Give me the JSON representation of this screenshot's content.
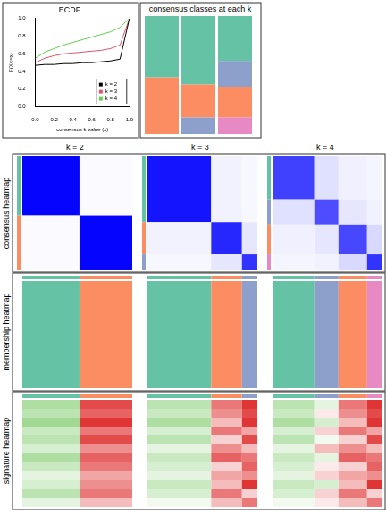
{
  "chart_data": {
    "type": "line",
    "title": "ECDF",
    "x_label": "consensus k value (x)",
    "y_label": "F(X<=x)",
    "x": [
      0,
      0.1,
      0.2,
      0.3,
      0.4,
      0.5,
      0.6,
      0.7,
      0.8,
      0.9,
      1.0
    ],
    "series": [
      {
        "name": "k = 2",
        "color": "#000000",
        "values": [
          0.47,
          0.48,
          0.48,
          0.49,
          0.49,
          0.5,
          0.5,
          0.51,
          0.52,
          0.54,
          1.0
        ]
      },
      {
        "name": "k = 3",
        "color": "#DF536B",
        "values": [
          0.5,
          0.55,
          0.58,
          0.6,
          0.61,
          0.62,
          0.63,
          0.64,
          0.66,
          0.7,
          1.0
        ]
      },
      {
        "name": "k = 4",
        "color": "#61D04F",
        "values": [
          0.55,
          0.62,
          0.66,
          0.7,
          0.73,
          0.76,
          0.79,
          0.82,
          0.85,
          0.9,
          1.0
        ]
      }
    ],
    "xlim": [
      0,
      1
    ],
    "xticks": [
      {
        "value": 0,
        "label": "0.0"
      },
      {
        "value": 0.2,
        "label": "0.2"
      },
      {
        "value": 0.4,
        "label": "0.4"
      },
      {
        "value": 0.6,
        "label": "0.6"
      },
      {
        "value": 0.8,
        "label": "0.8"
      },
      {
        "value": 1,
        "label": "1.0"
      }
    ],
    "ylim": [
      0,
      1
    ],
    "yticks": [
      {
        "value": 0,
        "label": "0.0"
      },
      {
        "value": 0.2,
        "label": "0.2"
      },
      {
        "value": 0.4,
        "label": "0.4"
      },
      {
        "value": 0.6,
        "label": "0.6"
      },
      {
        "value": 0.8,
        "label": "0.8"
      },
      {
        "value": 1,
        "label": "1.0"
      }
    ],
    "legend": "bottom-right",
    "grid": false
  },
  "consensus_classes": {
    "title": "consensus classes at each k"
  },
  "row_labels": [
    "consensus heatmap",
    "membership heatmap",
    "signature heatmap"
  ],
  "signature_range": [
    -1,
    1
  ],
  "panels": [
    {
      "label": "k = 2",
      "class_sizes": [
        52,
        48
      ],
      "class_colors": [
        "#66C2A5",
        "#FC8D62"
      ],
      "consensus": [
        [
          0.98,
          0.02
        ],
        [
          0.02,
          0.98
        ]
      ],
      "signature": [
        [
          -0.6,
          0.8
        ],
        [
          -0.5,
          0.7
        ],
        [
          -0.7,
          0.9
        ],
        [
          -0.4,
          0.6
        ],
        [
          -0.5,
          0.8
        ],
        [
          -0.3,
          0.5
        ],
        [
          -0.6,
          0.7
        ],
        [
          -0.4,
          0.6
        ],
        [
          -0.2,
          0.4
        ],
        [
          -0.3,
          0.5
        ],
        [
          -0.5,
          0.6
        ],
        [
          -0.2,
          0.3
        ]
      ]
    },
    {
      "label": "k = 3",
      "class_sizes": [
        58,
        28,
        14
      ],
      "class_colors": [
        "#66C2A5",
        "#FC8D62",
        "#8DA0CB"
      ],
      "consensus": [
        [
          0.92,
          0.05,
          0.03
        ],
        [
          0.05,
          0.85,
          0.1
        ],
        [
          0.03,
          0.1,
          0.8
        ]
      ],
      "signature": [
        [
          -0.5,
          0.6,
          0.9
        ],
        [
          -0.4,
          0.5,
          0.8
        ],
        [
          -0.6,
          0.3,
          0.9
        ],
        [
          -0.3,
          0.6,
          0.4
        ],
        [
          -0.5,
          0.2,
          0.8
        ],
        [
          -0.2,
          0.5,
          0.3
        ],
        [
          -0.4,
          0.7,
          0.6
        ],
        [
          -0.3,
          0.2,
          0.7
        ],
        [
          -0.2,
          0.4,
          0.5
        ],
        [
          -0.4,
          0.3,
          0.9
        ],
        [
          -0.3,
          0.6,
          0.2
        ],
        [
          -0.1,
          0.3,
          0.6
        ]
      ]
    },
    {
      "label": "k = 4",
      "class_sizes": [
        38,
        22,
        26,
        14
      ],
      "class_colors": [
        "#66C2A5",
        "#8DA0CB",
        "#FC8D62",
        "#E78AC3"
      ],
      "consensus": [
        [
          0.75,
          0.12,
          0.06,
          0.04
        ],
        [
          0.12,
          0.7,
          0.1,
          0.05
        ],
        [
          0.06,
          0.1,
          0.72,
          0.15
        ],
        [
          0.04,
          0.05,
          0.15,
          0.8
        ]
      ],
      "signature": [
        [
          -0.5,
          -0.2,
          0.6,
          0.9
        ],
        [
          -0.4,
          0.1,
          0.5,
          0.8
        ],
        [
          -0.6,
          -0.3,
          0.3,
          0.9
        ],
        [
          -0.3,
          0.2,
          0.6,
          0.4
        ],
        [
          -0.5,
          -0.1,
          0.2,
          0.8
        ],
        [
          -0.2,
          0.3,
          0.5,
          0.3
        ],
        [
          -0.4,
          -0.2,
          0.7,
          0.6
        ],
        [
          -0.3,
          0.1,
          0.2,
          0.7
        ],
        [
          -0.2,
          0.2,
          0.4,
          0.5
        ],
        [
          -0.4,
          -0.3,
          0.3,
          0.9
        ],
        [
          -0.3,
          0.2,
          0.6,
          0.2
        ],
        [
          -0.1,
          0.1,
          0.3,
          0.6
        ]
      ]
    }
  ]
}
